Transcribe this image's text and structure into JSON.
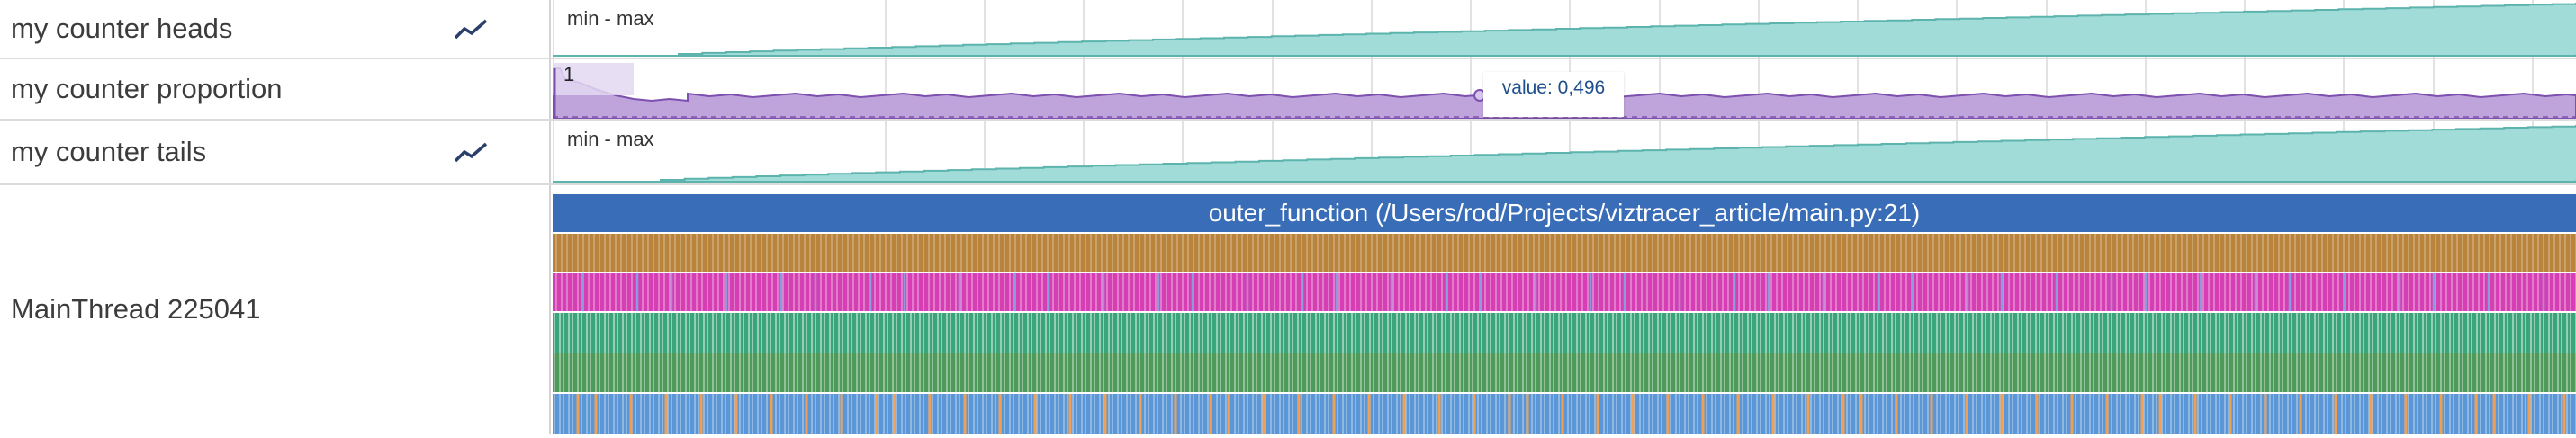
{
  "tracks": {
    "heads": {
      "name": "my counter heads",
      "range_label": "min - max",
      "icon": "line-chart-icon"
    },
    "proportion": {
      "name": "my counter proportion",
      "marker_label": "1",
      "tooltip": "value: 0,496"
    },
    "tails": {
      "name": "my counter tails",
      "range_label": "min - max",
      "icon": "line-chart-icon"
    }
  },
  "thread": {
    "name": "MainThread 225041",
    "top_slice_label": "outer_function (/Users/rod/Projects/viztracer_article/main.py:21)"
  },
  "colors": {
    "counter_fill": "#a2dcd8",
    "counter_line": "#5cb4ad",
    "proportion_fill": "#bfa4dc",
    "proportion_line": "#7d4fae",
    "icon": "#2b3f6b",
    "depth0": "#3a6db8",
    "depth1": "#b9833b",
    "depth2": "#d63fb4",
    "depth3": "#3aa57a",
    "depth4": "#4e9a5a",
    "depth5": "#5b97d6",
    "accent_orange": "#f0a055",
    "accent_blue": "#8b9be0"
  }
}
